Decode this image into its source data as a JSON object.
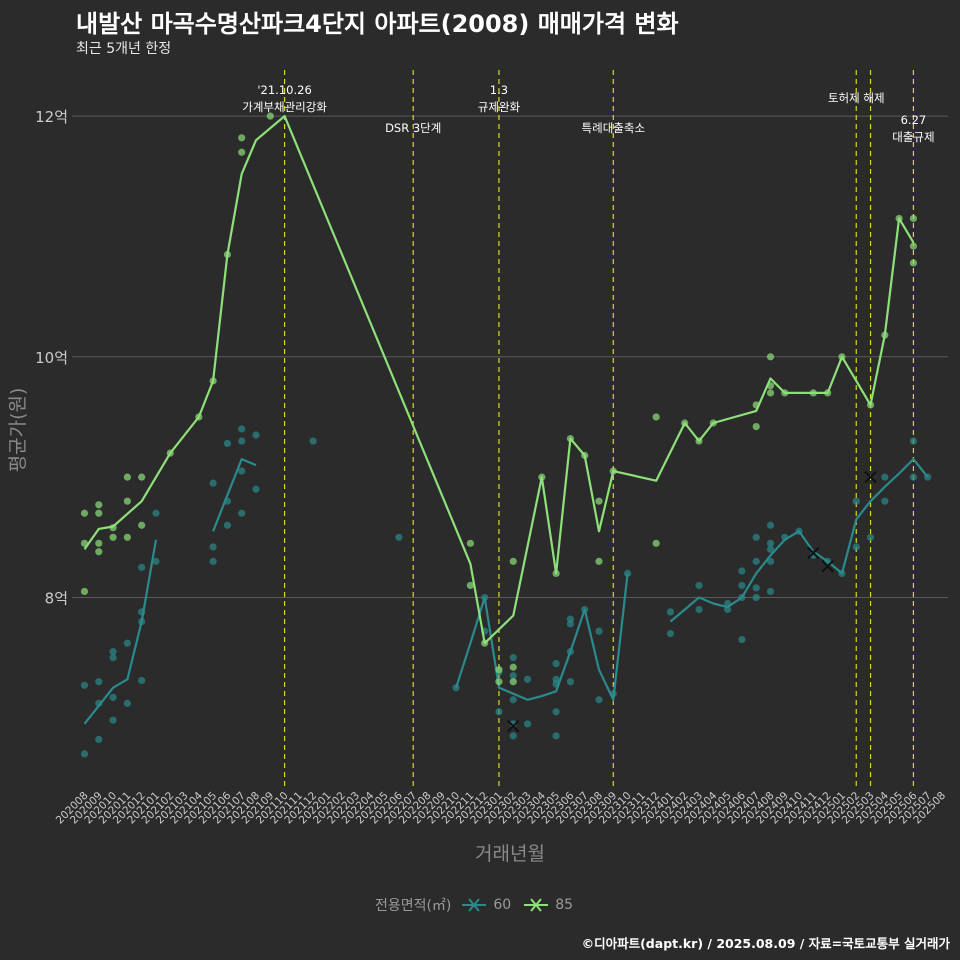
{
  "header": {
    "title": "내발산 마곡수명산파크4단지 아파트(2008) 매매가격 변화",
    "subtitle": "최근 5개년 한정"
  },
  "caption": "©디아파트(dapt.kr) / 2025.08.09 / 자료=국토교통부 실거래가",
  "legend": {
    "title": "전용면적(㎡)",
    "items": [
      {
        "label": "60",
        "color": "#2a8a8c"
      },
      {
        "label": "85",
        "color": "#8ee07a"
      }
    ]
  },
  "colors": {
    "background": "#2b2b2b",
    "grid": "#5a5a5a",
    "vline": "#d9d926",
    "axis_text": "#cccccc",
    "axis_title": "#8a8a8a",
    "series60": "#2a8a8c",
    "series85": "#8ee07a"
  },
  "chart_data": {
    "type": "line",
    "title": "내발산 마곡수명산파크4단지 아파트(2008) 매매가격 변화",
    "xlabel": "거래년월",
    "ylabel": "평균가(원)",
    "ylim": [
      6.4,
      12.4
    ],
    "yticks": [
      {
        "value": 8,
        "label": "8억"
      },
      {
        "value": 10,
        "label": "10억"
      },
      {
        "value": 12,
        "label": "12억"
      }
    ],
    "x_categories": [
      "202008",
      "202009",
      "202010",
      "202011",
      "202012",
      "202101",
      "202102",
      "202103",
      "202104",
      "202105",
      "202106",
      "202107",
      "202108",
      "202109",
      "202110",
      "202111",
      "202112",
      "202201",
      "202202",
      "202203",
      "202204",
      "202205",
      "202206",
      "202207",
      "202208",
      "202209",
      "202210",
      "202211",
      "202212",
      "202301",
      "202302",
      "202303",
      "202304",
      "202305",
      "202306",
      "202307",
      "202308",
      "202309",
      "202310",
      "202311",
      "202312",
      "202401",
      "202402",
      "202403",
      "202404",
      "202405",
      "202406",
      "202407",
      "202408",
      "202409",
      "202410",
      "202411",
      "202412",
      "202501",
      "202502",
      "202503",
      "202504",
      "202505",
      "202506",
      "202507",
      "202508"
    ],
    "events": [
      {
        "x": "202110",
        "label1": "'21.10.26",
        "label2": "가계부채관리강화"
      },
      {
        "x": "202207",
        "label1": "",
        "label2": "DSR 3단계"
      },
      {
        "x": "202301",
        "label1": "1.3",
        "label2": "규제완화"
      },
      {
        "x": "202309",
        "label1": "",
        "label2": "특례대출축소"
      },
      {
        "x": "202502",
        "label1": "토허제 해제",
        "label2": ""
      },
      {
        "x": "202503",
        "label1": "",
        "label2": ""
      },
      {
        "x": "202506",
        "label1": "6.27",
        "label2": "대출규제"
      }
    ],
    "series": [
      {
        "name": "60",
        "color": "#2a8a8c",
        "lines": [
          [
            [
              "202008",
              6.95
            ],
            [
              "202009",
              7.1
            ],
            [
              "202010",
              7.25
            ],
            [
              "202011",
              7.32
            ],
            [
              "202012",
              7.8
            ],
            [
              "202101",
              8.48
            ]
          ],
          [
            [
              "202105",
              8.55
            ],
            [
              "202106",
              8.85
            ],
            [
              "202107",
              9.15
            ],
            [
              "202108",
              9.1
            ]
          ],
          [
            [
              "202210",
              7.25
            ],
            [
              "202211",
              7.62
            ],
            [
              "202212",
              8.0
            ],
            [
              "202301",
              7.25
            ],
            [
              "202302",
              7.2
            ],
            [
              "202303",
              7.15
            ],
            [
              "202304",
              7.18
            ],
            [
              "202305",
              7.22
            ],
            [
              "202306",
              7.55
            ],
            [
              "202307",
              7.9
            ],
            [
              "202308",
              7.4
            ],
            [
              "202309",
              7.15
            ],
            [
              "202310",
              8.2
            ]
          ],
          [
            [
              "202401",
              7.8
            ],
            [
              "202402",
              7.9
            ],
            [
              "202403",
              8.0
            ],
            [
              "202404",
              7.95
            ],
            [
              "202405",
              7.92
            ],
            [
              "202406",
              8.0
            ],
            [
              "202407",
              8.2
            ],
            [
              "202408",
              8.35
            ],
            [
              "202409",
              8.48
            ],
            [
              "202410",
              8.55
            ],
            [
              "202411",
              8.38
            ],
            [
              "202412",
              8.3
            ],
            [
              "202501",
              8.2
            ],
            [
              "202502",
              8.65
            ],
            [
              "202503",
              8.8
            ],
            [
              "202504",
              8.92
            ],
            [
              "202505",
              9.03
            ],
            [
              "202506",
              9.15
            ],
            [
              "202507",
              9.0
            ]
          ]
        ],
        "points": [
          [
            "202008",
            6.7
          ],
          [
            "202008",
            7.27
          ],
          [
            "202009",
            6.82
          ],
          [
            "202009",
            7.12
          ],
          [
            "202009",
            7.3
          ],
          [
            "202010",
            6.98
          ],
          [
            "202010",
            7.17
          ],
          [
            "202010",
            7.5
          ],
          [
            "202010",
            7.55
          ],
          [
            "202011",
            7.12
          ],
          [
            "202011",
            7.62
          ],
          [
            "202012",
            7.31
          ],
          [
            "202012",
            7.8
          ],
          [
            "202012",
            7.88
          ],
          [
            "202012",
            8.25
          ],
          [
            "202101",
            8.3
          ],
          [
            "202101",
            8.7
          ],
          [
            "202105",
            8.3
          ],
          [
            "202105",
            8.42
          ],
          [
            "202105",
            8.95
          ],
          [
            "202106",
            8.6
          ],
          [
            "202106",
            8.8
          ],
          [
            "202106",
            9.28
          ],
          [
            "202107",
            8.7
          ],
          [
            "202107",
            9.05
          ],
          [
            "202107",
            9.3
          ],
          [
            "202107",
            9.4
          ],
          [
            "202108",
            8.9
          ],
          [
            "202108",
            9.35
          ],
          [
            "202112",
            9.3
          ],
          [
            "202206",
            8.5
          ],
          [
            "202210",
            7.25
          ],
          [
            "202212",
            7.72
          ],
          [
            "202212",
            8.0
          ],
          [
            "202301",
            7.05
          ],
          [
            "202301",
            7.38
          ],
          [
            "202302",
            6.85
          ],
          [
            "202302",
            6.95
          ],
          [
            "202302",
            7.15
          ],
          [
            "202302",
            7.35
          ],
          [
            "202302",
            7.5
          ],
          [
            "202303",
            6.95
          ],
          [
            "202303",
            7.32
          ],
          [
            "202305",
            6.85
          ],
          [
            "202305",
            7.05
          ],
          [
            "202305",
            7.28
          ],
          [
            "202305",
            7.32
          ],
          [
            "202305",
            7.45
          ],
          [
            "202306",
            7.3
          ],
          [
            "202306",
            7.55
          ],
          [
            "202306",
            7.78
          ],
          [
            "202306",
            7.82
          ],
          [
            "202307",
            7.9
          ],
          [
            "202308",
            7.15
          ],
          [
            "202308",
            7.72
          ],
          [
            "202309",
            7.2
          ],
          [
            "202310",
            8.2
          ],
          [
            "202401",
            7.7
          ],
          [
            "202401",
            7.88
          ],
          [
            "202403",
            7.9
          ],
          [
            "202403",
            8.1
          ],
          [
            "202405",
            7.9
          ],
          [
            "202405",
            7.95
          ],
          [
            "202406",
            7.65
          ],
          [
            "202406",
            8.0
          ],
          [
            "202406",
            8.1
          ],
          [
            "202406",
            8.22
          ],
          [
            "202407",
            8.0
          ],
          [
            "202407",
            8.08
          ],
          [
            "202407",
            8.3
          ],
          [
            "202407",
            8.5
          ],
          [
            "202408",
            8.05
          ],
          [
            "202408",
            8.3
          ],
          [
            "202408",
            8.4
          ],
          [
            "202408",
            8.45
          ],
          [
            "202408",
            8.6
          ],
          [
            "202409",
            8.5
          ],
          [
            "202410",
            8.55
          ],
          [
            "202411",
            8.35
          ],
          [
            "202412",
            8.3
          ],
          [
            "202501",
            8.2
          ],
          [
            "202502",
            8.42
          ],
          [
            "202502",
            8.8
          ],
          [
            "202503",
            8.5
          ],
          [
            "202504",
            8.8
          ],
          [
            "202504",
            9.0
          ],
          [
            "202506",
            9.0
          ],
          [
            "202506",
            9.3
          ],
          [
            "202507",
            9.0
          ]
        ],
        "markers": [
          [
            "202302",
            6.93
          ],
          [
            "202411",
            8.37
          ],
          [
            "202412",
            8.26
          ],
          [
            "202503",
            9.0
          ]
        ]
      },
      {
        "name": "85",
        "color": "#8ee07a",
        "lines": [
          [
            [
              "202008",
              8.4
            ],
            [
              "202009",
              8.57
            ],
            [
              "202010",
              8.59
            ],
            [
              "202012",
              8.8
            ],
            [
              "202102",
              9.2
            ],
            [
              "202104",
              9.5
            ],
            [
              "202105",
              9.8
            ],
            [
              "202106",
              10.85
            ],
            [
              "202107",
              11.52
            ],
            [
              "202108",
              11.8
            ],
            [
              "202110",
              12.0
            ],
            [
              "202211",
              8.28
            ],
            [
              "202212",
              7.62
            ],
            [
              "202302",
              7.85
            ],
            [
              "202304",
              9.0
            ],
            [
              "202305",
              8.2
            ],
            [
              "202306",
              9.32
            ],
            [
              "202307",
              9.18
            ],
            [
              "202308",
              8.55
            ],
            [
              "202309",
              9.05
            ],
            [
              "202312",
              8.97
            ],
            [
              "202402",
              9.45
            ],
            [
              "202403",
              9.3
            ],
            [
              "202404",
              9.45
            ],
            [
              "202407",
              9.55
            ],
            [
              "202408",
              9.82
            ],
            [
              "202409",
              9.7
            ],
            [
              "202411",
              9.7
            ],
            [
              "202412",
              9.7
            ],
            [
              "202501",
              10.0
            ],
            [
              "202503",
              9.6
            ],
            [
              "202504",
              10.18
            ],
            [
              "202505",
              11.15
            ],
            [
              "202506",
              10.95
            ]
          ]
        ],
        "points": [
          [
            "202008",
            8.05
          ],
          [
            "202008",
            8.45
          ],
          [
            "202008",
            8.7
          ],
          [
            "202009",
            8.38
          ],
          [
            "202009",
            8.45
          ],
          [
            "202009",
            8.7
          ],
          [
            "202009",
            8.77
          ],
          [
            "202010",
            8.5
          ],
          [
            "202010",
            8.58
          ],
          [
            "202011",
            8.5
          ],
          [
            "202011",
            8.8
          ],
          [
            "202011",
            9.0
          ],
          [
            "202012",
            8.6
          ],
          [
            "202012",
            9.0
          ],
          [
            "202102",
            9.2
          ],
          [
            "202104",
            9.5
          ],
          [
            "202105",
            9.8
          ],
          [
            "202106",
            10.85
          ],
          [
            "202107",
            11.7
          ],
          [
            "202107",
            11.82
          ],
          [
            "202109",
            12.0
          ],
          [
            "202211",
            8.1
          ],
          [
            "202211",
            8.45
          ],
          [
            "202212",
            7.62
          ],
          [
            "202301",
            7.3
          ],
          [
            "202301",
            7.4
          ],
          [
            "202302",
            7.3
          ],
          [
            "202302",
            7.42
          ],
          [
            "202302",
            8.3
          ],
          [
            "202304",
            9.0
          ],
          [
            "202305",
            8.2
          ],
          [
            "202306",
            9.32
          ],
          [
            "202307",
            9.18
          ],
          [
            "202308",
            8.3
          ],
          [
            "202308",
            8.8
          ],
          [
            "202309",
            9.05
          ],
          [
            "202312",
            8.45
          ],
          [
            "202312",
            9.5
          ],
          [
            "202402",
            9.45
          ],
          [
            "202403",
            9.3
          ],
          [
            "202404",
            9.45
          ],
          [
            "202407",
            9.42
          ],
          [
            "202407",
            9.6
          ],
          [
            "202408",
            9.7
          ],
          [
            "202408",
            9.76
          ],
          [
            "202408",
            10.0
          ],
          [
            "202409",
            9.7
          ],
          [
            "202411",
            9.7
          ],
          [
            "202412",
            9.7
          ],
          [
            "202501",
            10.0
          ],
          [
            "202503",
            9.6
          ],
          [
            "202504",
            10.18
          ],
          [
            "202505",
            11.15
          ],
          [
            "202506",
            10.78
          ],
          [
            "202506",
            10.92
          ],
          [
            "202506",
            11.15
          ]
        ],
        "markers": []
      }
    ]
  }
}
